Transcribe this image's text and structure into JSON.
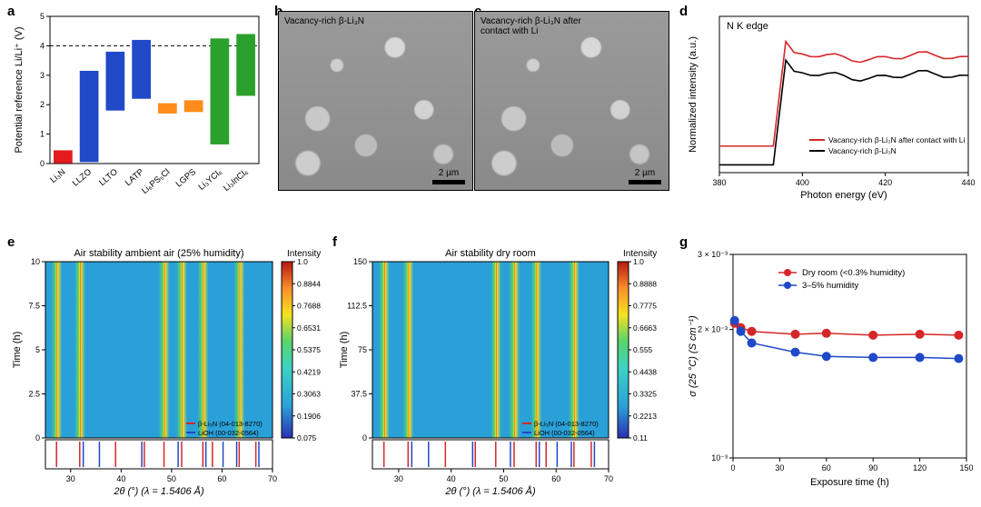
{
  "panel_a": {
    "type": "floating-bar",
    "ylabel": "Potential reference Li/Li⁺ (V)",
    "ylim": [
      0,
      5
    ],
    "ytick_step": 1,
    "dashed_refs": [
      0,
      4
    ],
    "categories": [
      "Li₃N",
      "LLZO",
      "LLTO",
      "LATP",
      "Li₆PS₅Cl",
      "LGPS",
      "Li₃YCl₆",
      "Li₃InCl₆"
    ],
    "ranges": [
      [
        0.01,
        0.45
      ],
      [
        0.05,
        3.15
      ],
      [
        1.8,
        3.8
      ],
      [
        2.2,
        4.2
      ],
      [
        1.7,
        2.05
      ],
      [
        1.75,
        2.15
      ],
      [
        0.65,
        4.25
      ],
      [
        2.3,
        4.4
      ]
    ],
    "colors": [
      "#e41a1c",
      "#1f49c6",
      "#1f49c6",
      "#1f49c6",
      "#ff8c1a",
      "#ff8c1a",
      "#2ca02c",
      "#2ca02c"
    ],
    "bar_width": 0.72,
    "axis_color": "#000",
    "grid": false,
    "label_rotation_deg": 40
  },
  "panel_b": {
    "type": "sem-image",
    "caption": "Vacancy-rich β-Li₃N",
    "scalebar": "2 µm"
  },
  "panel_c": {
    "type": "sem-image",
    "caption": "Vacancy-rich β-Li₃N after contact with Li",
    "scalebar": "2 µm"
  },
  "panel_d": {
    "type": "line",
    "corner_label": "N K edge",
    "xlabel": "Photon energy (eV)",
    "ylabel": "Normalized intensity (a.u.)",
    "xlim": [
      380,
      440
    ],
    "xtick_step": 20,
    "yticks_visible": false,
    "series": [
      {
        "name": "Vacancy-rich β-Li₃N after contact with Li",
        "color": "#d62728",
        "offset": 0.12
      },
      {
        "name": "Vacancy-rich β-Li₃N",
        "color": "#000000",
        "offset": 0.0
      }
    ],
    "edge_onset_eV": 395,
    "post_edge_level": 0.62,
    "pre_edge_level": 0.05,
    "overshoot": 0.72,
    "line_width": 1.6
  },
  "panel_e": {
    "type": "heatmap-with-reference-sticks",
    "title": "Air stability ambient air (25% humidity)",
    "xlabel": "2θ (°) (λ = 1.5406 Å)",
    "ylabel_main": "Time (h)",
    "xlim": [
      25,
      70
    ],
    "ylim_main": [
      0,
      10
    ],
    "ytick_step": 2.5,
    "xtick_step": 10,
    "colorbar": {
      "label": "Intensity",
      "ticks": [
        0.075,
        0.1906,
        0.3063,
        0.4219,
        0.5375,
        0.6531,
        0.7688,
        0.8844,
        1.0
      ]
    },
    "ref_sticks": {
      "series": [
        {
          "name": "β-Li₃N (04-013-8270)",
          "color": "#d62728",
          "positions": [
            27.2,
            31.8,
            38.9,
            44.6,
            48.5,
            52.0,
            56.2,
            58.1,
            63.4,
            66.7
          ]
        },
        {
          "name": "LiOH (00-032-0564)",
          "color": "#1f49c6",
          "positions": [
            32.5,
            35.7,
            44.1,
            51.3,
            56.8,
            60.2,
            62.9,
            67.3
          ]
        }
      ]
    },
    "peaks_x": [
      27.2,
      31.8,
      48.5,
      52.0,
      56.2,
      63.4
    ]
  },
  "panel_f": {
    "type": "heatmap-with-reference-sticks",
    "title": "Air stability dry room",
    "xlabel": "2θ (°) (λ = 1.5406 Å)",
    "ylabel_main": "Time (h)",
    "xlim": [
      25,
      70
    ],
    "ylim_main": [
      0,
      150
    ],
    "ytick_step": 37.5,
    "xtick_step": 10,
    "colorbar": {
      "label": "Intensity",
      "ticks": [
        0.11,
        0.2213,
        0.3325,
        0.4438,
        0.555,
        0.6663,
        0.7775,
        0.8888,
        1.0
      ]
    },
    "ref_sticks": {
      "series": [
        {
          "name": "β-Li₃N (04-013-8270)",
          "color": "#d62728",
          "positions": [
            27.2,
            31.8,
            38.9,
            44.6,
            48.5,
            52.0,
            56.2,
            58.1,
            63.4,
            66.7
          ]
        },
        {
          "name": "LiOH (00-032-0564)",
          "color": "#1f49c6",
          "positions": [
            32.5,
            35.7,
            44.1,
            51.3,
            56.8,
            60.2,
            62.9,
            67.3
          ]
        }
      ]
    },
    "peaks_x": [
      27.2,
      31.8,
      48.5,
      52.0,
      56.2,
      63.4
    ]
  },
  "panel_g": {
    "type": "semilogy-line-markers",
    "xlabel": "Exposure time (h)",
    "ylabel": "σ (25 °C) (S cm⁻¹)",
    "xlim": [
      0,
      150
    ],
    "xtick_step": 30,
    "ylim": [
      0.001,
      0.003
    ],
    "ytick_labels": [
      "10⁻³",
      "2 × 10⁻³",
      "3 × 10⁻³"
    ],
    "ytick_values": [
      0.001,
      0.002,
      0.003
    ],
    "series": [
      {
        "name": "Dry room (<0.3% humidity)",
        "color": "#d62728",
        "marker": "circle",
        "x": [
          1,
          5,
          12,
          40,
          60,
          90,
          120,
          145
        ],
        "y": [
          0.00207,
          0.00202,
          0.00198,
          0.00195,
          0.00196,
          0.00194,
          0.00195,
          0.00194
        ]
      },
      {
        "name": "3–5% humidity",
        "color": "#1f49c6",
        "marker": "circle",
        "x": [
          1,
          5,
          12,
          40,
          60,
          90,
          120,
          145
        ],
        "y": [
          0.0021,
          0.00198,
          0.00186,
          0.00177,
          0.00173,
          0.00172,
          0.00172,
          0.00171
        ]
      }
    ],
    "marker_size": 4.5,
    "line_width": 1.5
  },
  "panel_labels": {
    "a": "a",
    "b": "b",
    "c": "c",
    "d": "d",
    "e": "e",
    "f": "f",
    "g": "g"
  }
}
